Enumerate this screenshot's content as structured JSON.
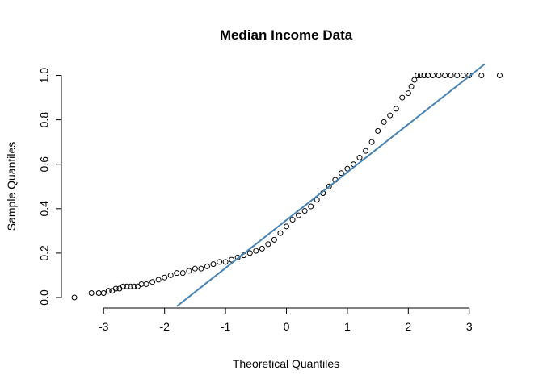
{
  "chart_data": {
    "type": "scatter",
    "title": "Median Income Data",
    "xlabel": "Theoretical Quantiles",
    "ylabel": "Sample Quantiles",
    "xlim": [
      -3.6,
      3.6
    ],
    "ylim": [
      -0.04,
      1.06
    ],
    "x_ticks": [
      -3,
      -2,
      -1,
      0,
      1,
      2,
      3
    ],
    "x_tick_labels": [
      "-3",
      "-2",
      "-1",
      "0",
      "1",
      "2",
      "3"
    ],
    "y_ticks": [
      0.0,
      0.2,
      0.4,
      0.6,
      0.8,
      1.0
    ],
    "y_tick_labels": [
      "0.0",
      "0.2",
      "0.4",
      "0.6",
      "0.8",
      "1.0"
    ],
    "grid": false,
    "colors": {
      "points": "#000000",
      "line": "#4682B4"
    },
    "series": [
      {
        "kind": "points",
        "x": [
          -3.48,
          -3.2,
          -3.08,
          -3.0,
          -2.92,
          -2.86,
          -2.8,
          -2.74,
          -2.68,
          -2.62,
          -2.56,
          -2.5,
          -2.44,
          -2.38,
          -2.3,
          -2.2,
          -2.1,
          -2.0,
          -1.9,
          -1.8,
          -1.7,
          -1.6,
          -1.5,
          -1.4,
          -1.3,
          -1.2,
          -1.1,
          -1.0,
          -0.9,
          -0.8,
          -0.7,
          -0.6,
          -0.5,
          -0.4,
          -0.3,
          -0.2,
          -0.1,
          0.0,
          0.1,
          0.2,
          0.3,
          0.4,
          0.5,
          0.6,
          0.7,
          0.8,
          0.9,
          1.0,
          1.1,
          1.2,
          1.3,
          1.4,
          1.5,
          1.6,
          1.7,
          1.8,
          1.9,
          2.0,
          2.05,
          2.1,
          2.15,
          2.2,
          2.26,
          2.32,
          2.4,
          2.5,
          2.6,
          2.7,
          2.8,
          2.9,
          3.0,
          3.2,
          3.5
        ],
        "y": [
          0.0,
          0.02,
          0.02,
          0.02,
          0.03,
          0.03,
          0.04,
          0.04,
          0.05,
          0.05,
          0.05,
          0.05,
          0.05,
          0.06,
          0.06,
          0.07,
          0.08,
          0.09,
          0.1,
          0.11,
          0.11,
          0.12,
          0.13,
          0.13,
          0.14,
          0.15,
          0.16,
          0.16,
          0.17,
          0.18,
          0.19,
          0.2,
          0.21,
          0.22,
          0.24,
          0.26,
          0.29,
          0.32,
          0.35,
          0.37,
          0.39,
          0.41,
          0.44,
          0.47,
          0.5,
          0.53,
          0.56,
          0.58,
          0.6,
          0.63,
          0.66,
          0.7,
          0.75,
          0.79,
          0.82,
          0.85,
          0.9,
          0.92,
          0.95,
          0.98,
          1.0,
          1.0,
          1.0,
          1.0,
          1.0,
          1.0,
          1.0,
          1.0,
          1.0,
          1.0,
          1.0,
          1.0,
          1.0
        ]
      },
      {
        "kind": "qq-line",
        "x": [
          -1.8,
          3.25
        ],
        "y": [
          -0.04,
          1.05
        ]
      }
    ]
  }
}
